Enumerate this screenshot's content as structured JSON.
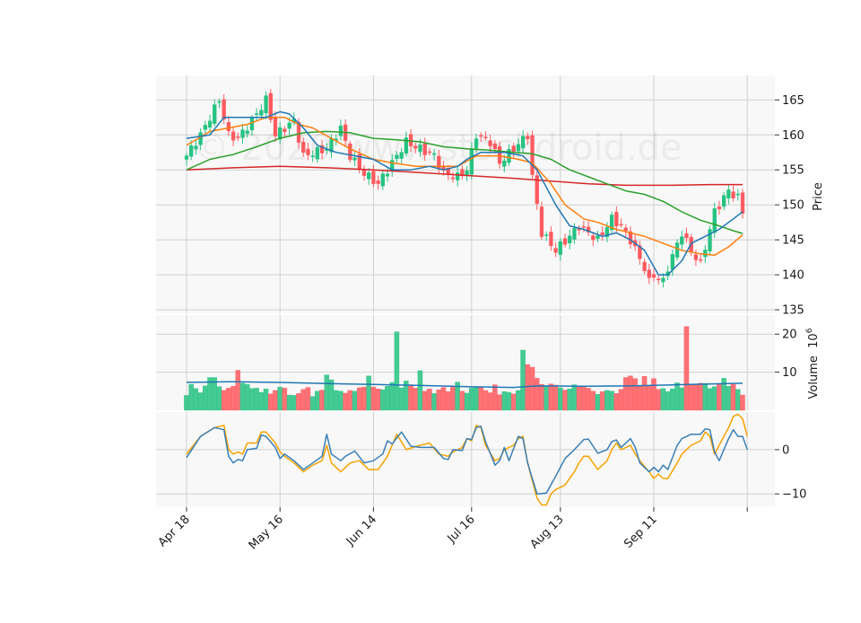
{
  "chart_data": {
    "type": "candlestick",
    "watermark": "© 2020 www.stockdroid.de",
    "x_tick_labels": [
      "Apr 18",
      "May 16",
      "Jun 14",
      "Jul 16",
      "Aug 13",
      "Sep 11"
    ],
    "x_tick_indices": [
      0,
      20,
      40,
      61,
      80,
      100
    ],
    "n_bars": 120,
    "colors": {
      "up": "#26c281",
      "down": "#ff5a5f",
      "ma_fast": "#1f77b4",
      "ma_mid": "#ff7f0e",
      "ma_slow": "#2ca02c",
      "ma_long": "#d62728",
      "vol_ma": "#1f77b4",
      "osc_a": "#3a7fb5",
      "osc_b": "#f5a300",
      "panel_bg": "#f8f8f8",
      "grid": "#d0d0d0"
    },
    "price_panel": {
      "ylabel": "Price",
      "ylim": [
        134.5,
        168.5
      ],
      "yticks": [
        135,
        140,
        145,
        150,
        155,
        160,
        165
      ],
      "close_anchors": [
        [
          0,
          157
        ],
        [
          3,
          160
        ],
        [
          7,
          165
        ],
        [
          9,
          160
        ],
        [
          11,
          159.5
        ],
        [
          14,
          162
        ],
        [
          17,
          165
        ],
        [
          19,
          160
        ],
        [
          23,
          162
        ],
        [
          25,
          157
        ],
        [
          30,
          158
        ],
        [
          33,
          161
        ],
        [
          35,
          157
        ],
        [
          38,
          154.5
        ],
        [
          41,
          153
        ],
        [
          44,
          156
        ],
        [
          47,
          159
        ],
        [
          50,
          158
        ],
        [
          53,
          157
        ],
        [
          55,
          154.5
        ],
        [
          58,
          154
        ],
        [
          60,
          155
        ],
        [
          62,
          160
        ],
        [
          65,
          159
        ],
        [
          67,
          156
        ],
        [
          70,
          158
        ],
        [
          73,
          160
        ],
        [
          74,
          154
        ],
        [
          75,
          150
        ],
        [
          76,
          146
        ],
        [
          79,
          143.5
        ],
        [
          82,
          145.5
        ],
        [
          84,
          147
        ],
        [
          86,
          146
        ],
        [
          88,
          145
        ],
        [
          91,
          148
        ],
        [
          93,
          147
        ],
        [
          95,
          145
        ],
        [
          98,
          141
        ],
        [
          99,
          139
        ],
        [
          100,
          140
        ],
        [
          102,
          139
        ],
        [
          103,
          141
        ],
        [
          106,
          146
        ],
        [
          108,
          143.5
        ],
        [
          110,
          141.5
        ],
        [
          113,
          149
        ],
        [
          116,
          152
        ],
        [
          118,
          151
        ],
        [
          119,
          149
        ]
      ],
      "ma_fast": [
        [
          0,
          159.5
        ],
        [
          5,
          160
        ],
        [
          8,
          162.5
        ],
        [
          12,
          162.5
        ],
        [
          17,
          162.5
        ],
        [
          20,
          163.3
        ],
        [
          22,
          163
        ],
        [
          25,
          161
        ],
        [
          28,
          158.5
        ],
        [
          32,
          157.5
        ],
        [
          36,
          157
        ],
        [
          40,
          156.5
        ],
        [
          44,
          155
        ],
        [
          48,
          155
        ],
        [
          52,
          155.5
        ],
        [
          55,
          155
        ],
        [
          58,
          155.5
        ],
        [
          60,
          156.5
        ],
        [
          63,
          157.5
        ],
        [
          68,
          157.5
        ],
        [
          72,
          157
        ],
        [
          75,
          155
        ],
        [
          79,
          150
        ],
        [
          82,
          147
        ],
        [
          85,
          146.5
        ],
        [
          89,
          145.5
        ],
        [
          92,
          146
        ],
        [
          95,
          145
        ],
        [
          98,
          143.5
        ],
        [
          101,
          140
        ],
        [
          103,
          140
        ],
        [
          106,
          142
        ],
        [
          108,
          144.5
        ],
        [
          111,
          145.5
        ],
        [
          114,
          146.5
        ],
        [
          117,
          148
        ],
        [
          119,
          149
        ]
      ],
      "ma_mid": [
        [
          0,
          158.5
        ],
        [
          5,
          160.5
        ],
        [
          9,
          161
        ],
        [
          13,
          161.5
        ],
        [
          17,
          162.5
        ],
        [
          21,
          162.5
        ],
        [
          24,
          161.5
        ],
        [
          27,
          161
        ],
        [
          31,
          159.5
        ],
        [
          35,
          158
        ],
        [
          40,
          156.5
        ],
        [
          44,
          156
        ],
        [
          49,
          155.5
        ],
        [
          54,
          155.5
        ],
        [
          58,
          155.5
        ],
        [
          62,
          157
        ],
        [
          67,
          157
        ],
        [
          71,
          156.5
        ],
        [
          74,
          156
        ],
        [
          78,
          153
        ],
        [
          81,
          150
        ],
        [
          85,
          148
        ],
        [
          88,
          147.5
        ],
        [
          92,
          146.5
        ],
        [
          95,
          146
        ],
        [
          98,
          145.5
        ],
        [
          102,
          144.5
        ],
        [
          106,
          143.5
        ],
        [
          110,
          143
        ],
        [
          113,
          142.8
        ],
        [
          116,
          144
        ],
        [
          119,
          145.7
        ]
      ],
      "ma_slow": [
        [
          0,
          155
        ],
        [
          5,
          156.5
        ],
        [
          10,
          157.2
        ],
        [
          15,
          158.3
        ],
        [
          20,
          159.5
        ],
        [
          25,
          160.3
        ],
        [
          30,
          160.5
        ],
        [
          35,
          160.3
        ],
        [
          40,
          159.5
        ],
        [
          45,
          159.3
        ],
        [
          50,
          159
        ],
        [
          55,
          158.3
        ],
        [
          60,
          158
        ],
        [
          65,
          157.8
        ],
        [
          70,
          157.5
        ],
        [
          74,
          157.3
        ],
        [
          78,
          156.5
        ],
        [
          82,
          155
        ],
        [
          86,
          154
        ],
        [
          90,
          153
        ],
        [
          94,
          152
        ],
        [
          98,
          151.5
        ],
        [
          102,
          150.5
        ],
        [
          106,
          149
        ],
        [
          110,
          147.8
        ],
        [
          114,
          147
        ],
        [
          117,
          146.3
        ],
        [
          119,
          145.9
        ]
      ],
      "ma_long": [
        [
          0,
          155
        ],
        [
          10,
          155.3
        ],
        [
          20,
          155.5
        ],
        [
          30,
          155.3
        ],
        [
          40,
          155
        ],
        [
          50,
          154.6
        ],
        [
          60,
          154.2
        ],
        [
          70,
          153.8
        ],
        [
          78,
          153.4
        ],
        [
          86,
          153
        ],
        [
          94,
          152.8
        ],
        [
          104,
          152.8
        ],
        [
          112,
          152.9
        ],
        [
          119,
          152.9
        ]
      ]
    },
    "volume_panel": {
      "ylabel": "Volume  10^6",
      "ylim": [
        0,
        25
      ],
      "yticks": [
        10,
        20
      ],
      "volumes_millions": [
        3.9,
        6.8,
        5.7,
        4.6,
        6.4,
        8.6,
        8.6,
        6.2,
        5.2,
        5.8,
        6.3,
        10.5,
        7.1,
        6.8,
        5.7,
        5.8,
        4.7,
        5.6,
        4.3,
        5.2,
        6.1,
        5.8,
        4.0,
        3.9,
        4.4,
        5.5,
        6.0,
        3.6,
        5.0,
        5.3,
        9.3,
        8.0,
        5.2,
        5.0,
        4.5,
        5.2,
        5.0,
        5.9,
        6.1,
        9.0,
        6.1,
        5.6,
        5.4,
        6.3,
        7.3,
        20.6,
        5.9,
        7.7,
        6.7,
        5.8,
        10.4,
        5.0,
        5.6,
        4.4,
        5.4,
        6.0,
        4.9,
        6.3,
        7.4,
        5.0,
        4.5,
        5.8,
        6.0,
        6.0,
        5.2,
        4.6,
        6.7,
        4.1,
        4.9,
        4.7,
        4.3,
        5.2,
        15.8,
        12.0,
        11.3,
        8.4,
        6.8,
        6.2,
        6.9,
        6.6,
        5.9,
        5.3,
        5.6,
        6.7,
        6.4,
        6.1,
        5.8,
        5.0,
        4.2,
        4.9,
        5.2,
        5.0,
        4.4,
        5.5,
        8.6,
        9.0,
        8.3,
        6.3,
        8.9,
        6.5,
        8.3,
        5.5,
        5.7,
        4.9,
        5.6,
        7.2,
        5.9,
        22.0,
        6.6,
        6.9,
        7.1,
        7.0,
        5.7,
        6.2,
        7.0,
        8.4,
        6.3,
        6.8,
        5.5,
        4.0
      ],
      "vol_ma": [
        [
          0,
          7.3
        ],
        [
          10,
          7.5
        ],
        [
          20,
          7.3
        ],
        [
          30,
          7.0
        ],
        [
          40,
          6.8
        ],
        [
          50,
          6.5
        ],
        [
          60,
          6.2
        ],
        [
          70,
          6.0
        ],
        [
          75,
          6.4
        ],
        [
          85,
          6.3
        ],
        [
          95,
          6.4
        ],
        [
          105,
          6.7
        ],
        [
          112,
          6.9
        ],
        [
          119,
          7.1
        ]
      ]
    },
    "oscillator_panel": {
      "ylim": [
        -13,
        8.5
      ],
      "yticks": [
        -10,
        0
      ],
      "line_a": [
        [
          0,
          -1.8
        ],
        [
          3,
          3
        ],
        [
          6,
          5
        ],
        [
          8,
          4.5
        ],
        [
          9,
          -1.5
        ],
        [
          10,
          -3
        ],
        [
          11,
          -2.2
        ],
        [
          12,
          -2.5
        ],
        [
          13,
          0
        ],
        [
          15,
          0.3
        ],
        [
          16,
          3.3
        ],
        [
          17,
          3
        ],
        [
          19,
          0.5
        ],
        [
          20,
          -2
        ],
        [
          21,
          -1
        ],
        [
          23,
          -2.5
        ],
        [
          25,
          -4.5
        ],
        [
          27,
          -3
        ],
        [
          29,
          -1.5
        ],
        [
          30,
          3.5
        ],
        [
          31,
          -1
        ],
        [
          33,
          -2.5
        ],
        [
          34,
          -1.5
        ],
        [
          36,
          -0.3
        ],
        [
          38,
          -3
        ],
        [
          40,
          -2.5
        ],
        [
          42,
          -1
        ],
        [
          43,
          2
        ],
        [
          44,
          1.3
        ],
        [
          46,
          4
        ],
        [
          48,
          0.8
        ],
        [
          50,
          0.5
        ],
        [
          53,
          0.5
        ],
        [
          55,
          -2
        ],
        [
          56,
          -2.2
        ],
        [
          57,
          0
        ],
        [
          59,
          -0.2
        ],
        [
          60,
          2.5
        ],
        [
          61,
          2.3
        ],
        [
          62,
          5
        ],
        [
          63,
          5.3
        ],
        [
          64,
          1.8
        ],
        [
          66,
          -3.5
        ],
        [
          67,
          -2.5
        ],
        [
          68,
          0.5
        ],
        [
          69,
          -2.5
        ],
        [
          71,
          3
        ],
        [
          72,
          2.5
        ],
        [
          73,
          -3
        ],
        [
          74,
          -6.5
        ],
        [
          75,
          -10
        ],
        [
          77,
          -9.8
        ],
        [
          79,
          -6
        ],
        [
          81,
          -2
        ],
        [
          83,
          0
        ],
        [
          85,
          2.3
        ],
        [
          86,
          2.4
        ],
        [
          88,
          -0.8
        ],
        [
          90,
          0
        ],
        [
          91,
          1.8
        ],
        [
          92,
          2.2
        ],
        [
          93,
          0.5
        ],
        [
          95,
          2.5
        ],
        [
          96,
          0.6
        ],
        [
          97,
          -3
        ],
        [
          99,
          -5
        ],
        [
          100,
          -4
        ],
        [
          101,
          -5
        ],
        [
          102,
          -3.5
        ],
        [
          103,
          -4.5
        ],
        [
          105,
          1
        ],
        [
          106,
          2.5
        ],
        [
          108,
          3.5
        ],
        [
          110,
          3.5
        ],
        [
          111,
          4.7
        ],
        [
          112,
          4.5
        ],
        [
          113,
          -0.5
        ],
        [
          114,
          -2.5
        ],
        [
          116,
          2.5
        ],
        [
          117,
          4.5
        ],
        [
          118,
          3
        ],
        [
          119,
          3
        ],
        [
          120,
          0
        ]
      ],
      "line_b": [
        [
          0,
          -1
        ],
        [
          3,
          3
        ],
        [
          6,
          5
        ],
        [
          8,
          5.5
        ],
        [
          9,
          0
        ],
        [
          10,
          -1
        ],
        [
          11,
          -0.5
        ],
        [
          12,
          -1
        ],
        [
          13,
          1.5
        ],
        [
          15,
          1.5
        ],
        [
          16,
          4
        ],
        [
          17,
          4
        ],
        [
          19,
          1.5
        ],
        [
          20,
          -0.5
        ],
        [
          21,
          -1.5
        ],
        [
          23,
          -3
        ],
        [
          25,
          -5
        ],
        [
          27,
          -3.5
        ],
        [
          29,
          -2.5
        ],
        [
          30,
          1
        ],
        [
          31,
          -3
        ],
        [
          33,
          -5
        ],
        [
          35,
          -3
        ],
        [
          37,
          -2.5
        ],
        [
          39,
          -4.5
        ],
        [
          41,
          -4.5
        ],
        [
          43,
          -1.5
        ],
        [
          44,
          1
        ],
        [
          45,
          3.5
        ],
        [
          47,
          0
        ],
        [
          50,
          1
        ],
        [
          52,
          1.5
        ],
        [
          54,
          -1
        ],
        [
          56,
          -1.5
        ],
        [
          57,
          -0.5
        ],
        [
          59,
          0.5
        ],
        [
          60,
          2.5
        ],
        [
          61,
          2
        ],
        [
          62,
          5.5
        ],
        [
          63,
          5
        ],
        [
          64,
          1
        ],
        [
          66,
          -2.5
        ],
        [
          67,
          -2
        ],
        [
          68,
          0
        ],
        [
          70,
          1
        ],
        [
          71,
          2.5
        ],
        [
          72,
          3
        ],
        [
          73,
          -3
        ],
        [
          74,
          -7
        ],
        [
          75,
          -11
        ],
        [
          76,
          -12.5
        ],
        [
          77,
          -12.5
        ],
        [
          78,
          -10
        ],
        [
          79,
          -9
        ],
        [
          81,
          -8
        ],
        [
          83,
          -5
        ],
        [
          84,
          -3
        ],
        [
          85,
          -1.5
        ],
        [
          86,
          -1.5
        ],
        [
          88,
          -4.5
        ],
        [
          90,
          -2.5
        ],
        [
          91,
          0
        ],
        [
          92,
          1.5
        ],
        [
          93,
          0
        ],
        [
          95,
          1
        ],
        [
          96,
          -1
        ],
        [
          97,
          -2.5
        ],
        [
          99,
          -5
        ],
        [
          100,
          -6.5
        ],
        [
          101,
          -5.5
        ],
        [
          102,
          -6.5
        ],
        [
          103,
          -6.5
        ],
        [
          105,
          -3
        ],
        [
          106,
          -1
        ],
        [
          108,
          1
        ],
        [
          110,
          2
        ],
        [
          111,
          4
        ],
        [
          112,
          3
        ],
        [
          113,
          -1
        ],
        [
          114,
          1
        ],
        [
          116,
          5
        ],
        [
          117,
          7.5
        ],
        [
          118,
          8
        ],
        [
          119,
          7
        ],
        [
          120,
          3
        ]
      ]
    }
  }
}
